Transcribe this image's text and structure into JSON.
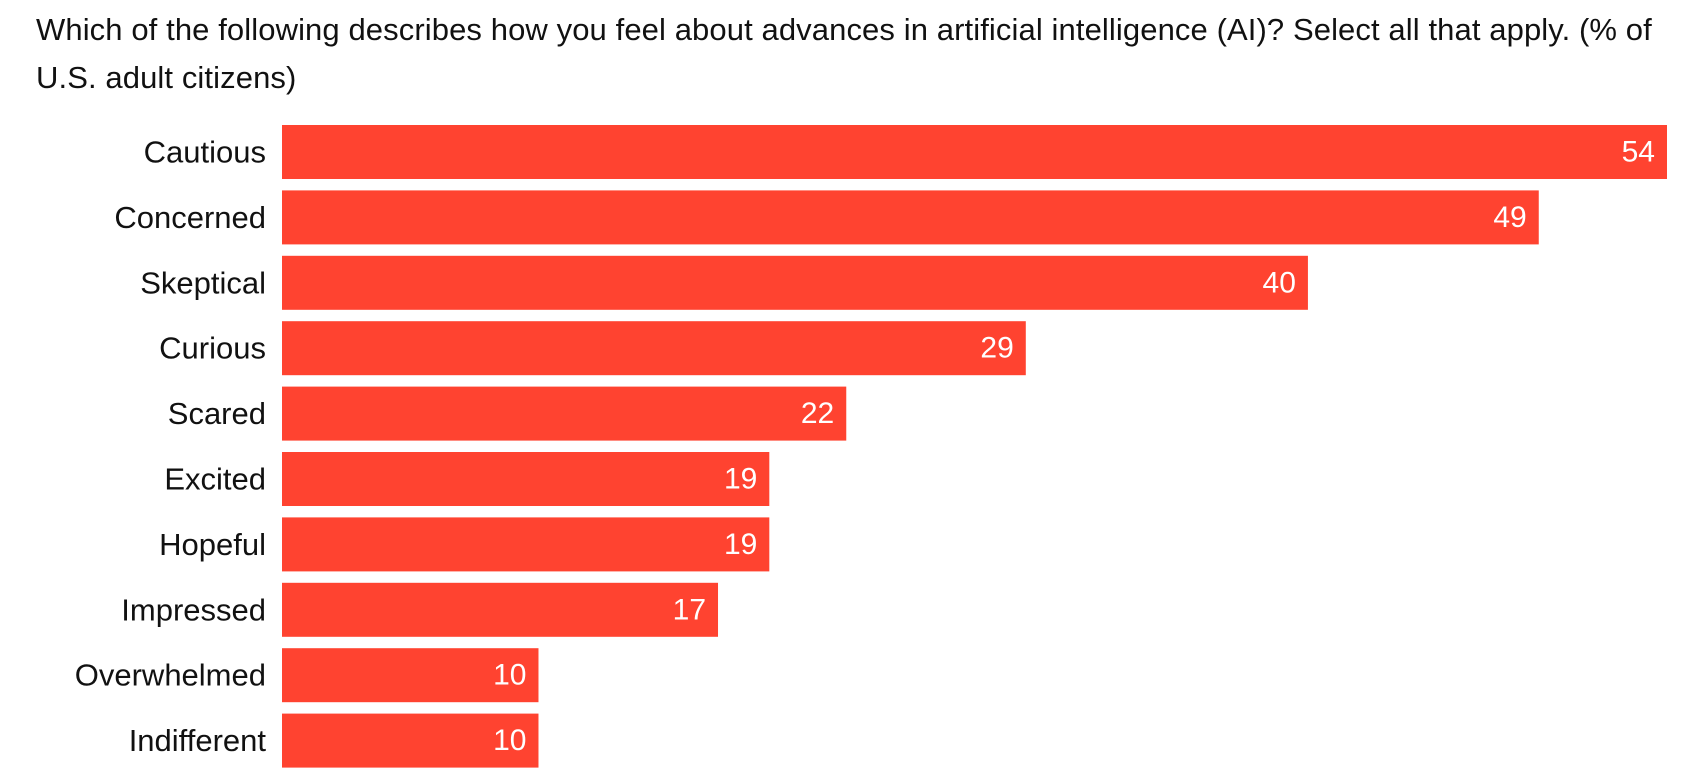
{
  "chart_data": {
    "type": "bar",
    "orientation": "horizontal",
    "title": "Which of the following describes how you feel about advances in artificial intelligence (AI)? Select all that apply. (% of U.S. adult citizens)",
    "categories": [
      "Cautious",
      "Concerned",
      "Skeptical",
      "Curious",
      "Scared",
      "Excited",
      "Hopeful",
      "Impressed",
      "Overwhelmed",
      "Indifferent"
    ],
    "values": [
      54,
      49,
      40,
      29,
      22,
      19,
      19,
      17,
      10,
      10
    ],
    "xlim": [
      0,
      54
    ],
    "grid": false,
    "legend": "none",
    "bar_color": "#ff4330",
    "value_label_color": "#ffffff"
  }
}
